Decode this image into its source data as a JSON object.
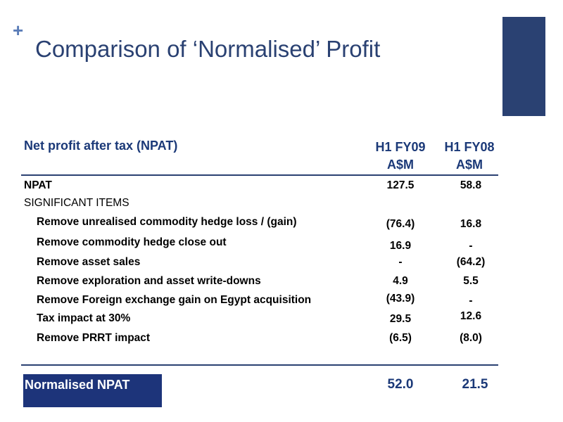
{
  "slide": {
    "plus": "+",
    "title": "Comparison of ‘Normalised’ Profit"
  },
  "colors": {
    "accent": "#2a4172",
    "header_text": "#1b3978",
    "plus": "#5b7db8",
    "normalised_box": "#1d347a"
  },
  "table": {
    "header": {
      "label": "Net profit after tax (NPAT)",
      "col1_line1": "H1 FY09",
      "col1_line2": "A$M",
      "col2_line1": "H1 FY08",
      "col2_line2": "A$M"
    },
    "rows": [
      {
        "label": "NPAT",
        "v1": "127.5",
        "v2": "58.8"
      },
      {
        "label": "SIGNIFICANT ITEMS",
        "v1": "",
        "v2": ""
      },
      {
        "label": "Remove unrealised commodity hedge loss / (gain)",
        "v1": "(76.4)",
        "v2": "16.8"
      },
      {
        "label": "Remove commodity hedge close out",
        "v1": "16.9",
        "v2": "-"
      },
      {
        "label": "Remove asset sales",
        "v1": "-",
        "v2": "(64.2)"
      },
      {
        "label": "Remove exploration and asset write-downs",
        "v1": "4.9",
        "v2": "5.5"
      },
      {
        "label": "Remove Foreign exchange gain on Egypt acquisition",
        "v1": "(43.9)",
        "v2": "-"
      },
      {
        "label": "Tax impact at 30%",
        "v1": "29.5",
        "v2": "12.6"
      },
      {
        "label": "Remove PRRT impact",
        "v1": "(6.5)",
        "v2": "(8.0)"
      }
    ],
    "total": {
      "label": "Normalised NPAT",
      "v1": "52.0",
      "v2": "21.5"
    }
  }
}
